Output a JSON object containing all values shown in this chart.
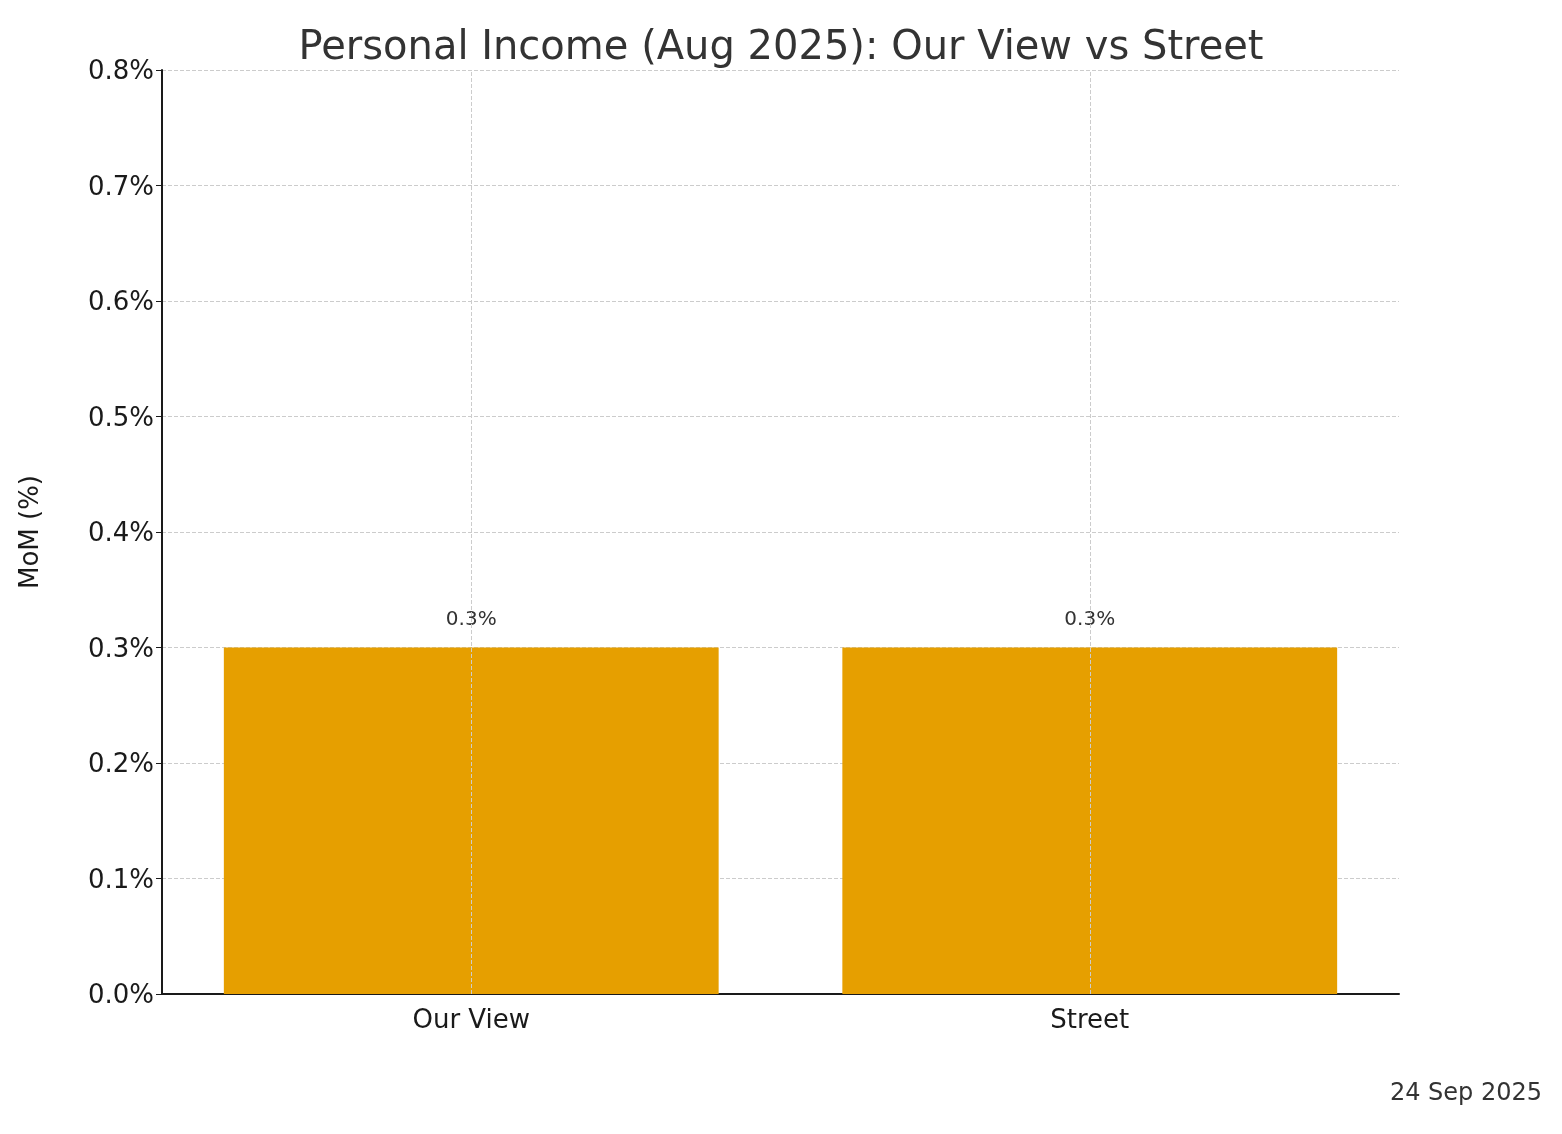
{
  "chart_data": {
    "type": "bar",
    "title": "Personal Income (Aug 2025): Our View vs Street",
    "ylabel": "MoM (%)",
    "categories": [
      "Our View",
      "Street"
    ],
    "values": [
      0.3,
      0.3
    ],
    "color": "#e69f00",
    "value_labels": [
      "0.3%",
      "0.3%"
    ],
    "ylim": [
      0,
      0.8
    ],
    "yticks": [
      {
        "value": 0,
        "label": "0.0%"
      },
      {
        "value": 0.1,
        "label": "0.1%"
      },
      {
        "value": 0.2,
        "label": "0.2%"
      },
      {
        "value": 0.3,
        "label": "0.3%"
      },
      {
        "value": 0.4,
        "label": "0.4%"
      },
      {
        "value": 0.5,
        "label": "0.5%"
      },
      {
        "value": 0.6,
        "label": "0.6%"
      },
      {
        "value": 0.7,
        "label": "0.7%"
      },
      {
        "value": 0.8,
        "label": "0.8%"
      }
    ],
    "grid": true,
    "annotations": [
      "24 Sep 2025"
    ]
  }
}
